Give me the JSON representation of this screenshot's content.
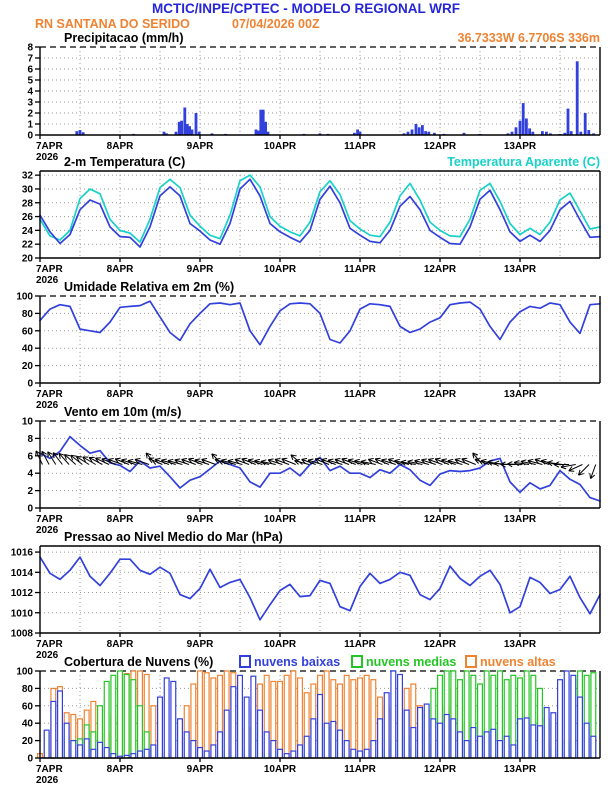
{
  "header": {
    "title": "MCTIC/INPE/CPTEC - MODELO REGIONAL WRF",
    "station": "RN SANTANA DO SERIDO",
    "run": "07/04/2026 00Z",
    "title_color": "#2626d8",
    "subtitle_color": "#ef8332"
  },
  "colors": {
    "line_blue": "#3240dc",
    "cyan": "#18d2c9",
    "green": "#25c525",
    "orange": "#ef8332",
    "grid": "#999999",
    "frame": "#000000"
  },
  "x_axis": {
    "day_labels": [
      "7APR",
      "8APR",
      "9APR",
      "10APR",
      "11APR",
      "12APR",
      "13APR"
    ],
    "year": "2026",
    "n_days": 7
  },
  "chart_data": [
    {
      "id": "precip",
      "type": "bar",
      "title": "Precipitacao (mm/h)",
      "right_label": "36.7333W 6.7706S 336m",
      "right_color": "#ef8332",
      "ylim": [
        0,
        8
      ],
      "yticks": [
        0,
        1,
        2,
        3,
        4,
        5,
        6,
        7,
        8
      ],
      "top_dashed": true,
      "bar_color": "#3240dc",
      "bars": [
        [
          0.46,
          0.35
        ],
        [
          0.5,
          0.45
        ],
        [
          0.54,
          0.25
        ],
        [
          1.17,
          0.1
        ],
        [
          1.55,
          0.3
        ],
        [
          1.58,
          0.15
        ],
        [
          1.7,
          0.3
        ],
        [
          1.74,
          1.2
        ],
        [
          1.77,
          1.3
        ],
        [
          1.81,
          2.5
        ],
        [
          1.84,
          1.0
        ],
        [
          1.87,
          0.8
        ],
        [
          1.9,
          0.5
        ],
        [
          1.95,
          2.0
        ],
        [
          1.99,
          0.3
        ],
        [
          2.15,
          0.15
        ],
        [
          2.32,
          0.1
        ],
        [
          2.7,
          0.5
        ],
        [
          2.73,
          0.4
        ],
        [
          2.76,
          2.3
        ],
        [
          2.79,
          2.3
        ],
        [
          2.82,
          1.2
        ],
        [
          2.85,
          0.3
        ],
        [
          3.3,
          0.1
        ],
        [
          3.5,
          0.15
        ],
        [
          3.6,
          0.1
        ],
        [
          3.93,
          0.2
        ],
        [
          3.97,
          0.5
        ],
        [
          4.0,
          0.3
        ],
        [
          4.55,
          0.15
        ],
        [
          4.6,
          0.3
        ],
        [
          4.65,
          0.5
        ],
        [
          4.7,
          1.0
        ],
        [
          4.74,
          0.7
        ],
        [
          4.78,
          0.9
        ],
        [
          4.82,
          0.35
        ],
        [
          4.86,
          0.3
        ],
        [
          4.93,
          0.2
        ],
        [
          5.05,
          0.1
        ],
        [
          5.3,
          0.2
        ],
        [
          5.5,
          0.1
        ],
        [
          5.85,
          0.15
        ],
        [
          5.9,
          0.3
        ],
        [
          5.95,
          0.7
        ],
        [
          6.0,
          1.3
        ],
        [
          6.04,
          2.9
        ],
        [
          6.08,
          1.5
        ],
        [
          6.12,
          0.6
        ],
        [
          6.16,
          0.3
        ],
        [
          6.28,
          0.35
        ],
        [
          6.33,
          0.3
        ],
        [
          6.38,
          0.15
        ],
        [
          6.5,
          0.1
        ],
        [
          6.56,
          0.2
        ],
        [
          6.6,
          2.4
        ],
        [
          6.64,
          0.35
        ],
        [
          6.715,
          6.7
        ],
        [
          6.76,
          0.3
        ],
        [
          6.815,
          2.0
        ],
        [
          6.86,
          0.45
        ],
        [
          6.92,
          0.15
        ]
      ]
    },
    {
      "id": "temp2m",
      "type": "line",
      "title": "2-m Temperatura (C)",
      "right_label": "Temperatura Aparente (C)",
      "right_color": "#18d2c9",
      "ylim": [
        20,
        32.6
      ],
      "yticks": [
        20,
        22,
        24,
        26,
        28,
        30,
        32
      ],
      "top_dashed": false,
      "series": [
        {
          "name": "2-m Temperatura (C)",
          "color": "#3240dc",
          "values": [
            26.2,
            23.8,
            22.1,
            23.4,
            27.0,
            28.4,
            27.8,
            24.5,
            23.1,
            23.0,
            21.6,
            24.5,
            29.0,
            30.3,
            29.0,
            25.0,
            23.9,
            22.6,
            22.0,
            25.0,
            30.0,
            31.4,
            29.0,
            25.0,
            23.8,
            23.0,
            22.3,
            24.0,
            28.5,
            30.4,
            28.0,
            24.3,
            23.3,
            22.4,
            22.2,
            24.0,
            27.5,
            28.9,
            27.0,
            24.0,
            23.0,
            22.1,
            22.0,
            24.5,
            28.5,
            29.8,
            27.0,
            23.8,
            22.4,
            23.3,
            22.4,
            24.0,
            27.0,
            28.2,
            25.5,
            23.0,
            23.1
          ]
        },
        {
          "name": "Temperatura Aparente (C)",
          "color": "#18d2c9",
          "values": [
            25.6,
            23.2,
            22.6,
            24.0,
            28.6,
            30.0,
            29.3,
            25.6,
            24.0,
            23.6,
            22.3,
            25.6,
            30.2,
            31.4,
            30.2,
            26.2,
            24.6,
            23.3,
            22.8,
            26.2,
            31.2,
            32.0,
            30.3,
            26.0,
            24.6,
            23.8,
            23.2,
            25.2,
            29.6,
            31.2,
            29.2,
            25.4,
            24.2,
            23.3,
            23.1,
            25.2,
            29.0,
            30.8,
            28.4,
            25.2,
            24.0,
            23.2,
            23.1,
            25.6,
            29.8,
            30.8,
            28.2,
            25.0,
            23.4,
            24.3,
            23.4,
            25.2,
            28.4,
            29.4,
            26.8,
            24.2,
            24.5
          ]
        }
      ]
    },
    {
      "id": "rh2m",
      "type": "line",
      "title": "Umidade Relativa em 2m (%)",
      "right_label": "",
      "ylim": [
        0,
        100
      ],
      "yticks": [
        0,
        20,
        40,
        60,
        80,
        100
      ],
      "top_dashed": true,
      "series": [
        {
          "name": "Umidade Relativa em 2m (%)",
          "color": "#3240dc",
          "values": [
            72,
            85,
            90,
            88,
            62,
            60,
            58,
            70,
            87,
            88,
            89,
            94,
            76,
            58,
            49,
            68,
            80,
            91,
            92,
            90,
            92,
            60,
            44,
            65,
            83,
            91,
            92,
            91,
            80,
            50,
            46,
            60,
            85,
            91,
            90,
            88,
            65,
            58,
            62,
            70,
            75,
            90,
            92,
            93,
            85,
            65,
            50,
            70,
            82,
            88,
            86,
            92,
            90,
            70,
            57,
            90,
            91
          ]
        }
      ]
    },
    {
      "id": "wind10m",
      "type": "line",
      "title": "Vento em 10m (m/s)",
      "right_label": "",
      "ylim": [
        0,
        10
      ],
      "yticks": [
        0,
        2,
        4,
        6,
        8,
        10
      ],
      "top_dashed": true,
      "series": [
        {
          "name": "Vento em 10m (m/s)",
          "color": "#3240dc",
          "values": [
            6.3,
            5.7,
            6.5,
            8.2,
            7.2,
            6.3,
            6.6,
            5.2,
            4.9,
            4.2,
            5.4,
            4.6,
            4.8,
            3.6,
            2.3,
            3.2,
            3.6,
            4.5,
            5.4,
            5.0,
            4.6,
            3.0,
            2.4,
            4.0,
            4.0,
            4.6,
            3.7,
            5.0,
            5.8,
            4.3,
            4.8,
            4.0,
            4.0,
            3.5,
            4.4,
            4.0,
            5.0,
            4.4,
            3.2,
            2.6,
            3.9,
            4.3,
            4.2,
            4.3,
            4.6,
            5.4,
            5.7,
            3.0,
            1.8,
            2.9,
            2.2,
            2.6,
            4.3,
            3.3,
            2.7,
            1.2,
            0.8
          ]
        }
      ],
      "arrows": {
        "anchor": 5,
        "color": "#000000",
        "angles_deg": [
          115,
          118,
          122,
          128,
          132,
          138,
          142,
          148,
          150,
          152,
          155,
          158,
          160,
          158,
          162,
          165,
          160,
          130,
          156,
          160,
          163,
          165,
          162,
          160,
          158,
          162,
          160,
          135,
          160,
          163,
          165,
          160,
          158,
          162,
          165,
          168,
          162,
          160,
          158,
          140,
          165,
          160,
          163,
          158,
          160,
          163,
          160,
          158,
          162,
          165,
          168,
          160,
          158,
          162,
          160,
          165,
          170,
          168,
          165,
          162,
          160,
          158,
          162,
          165,
          160,
          158,
          130,
          160,
          165,
          170,
          175,
          180,
          178,
          172,
          168,
          165,
          160,
          165,
          172,
          180,
          190,
          205,
          225,
          250
        ]
      }
    },
    {
      "id": "slp",
      "type": "line",
      "title": "Pressao ao Nivel Medio do Mar (hPa)",
      "right_label": "",
      "ylim": [
        1008,
        1016.6
      ],
      "yticks": [
        1008,
        1010,
        1012,
        1014,
        1016
      ],
      "top_dashed": false,
      "series": [
        {
          "name": "Pressao ao Nivel Medio do Mar (hPa)",
          "color": "#3240dc",
          "values": [
            1015.5,
            1013.9,
            1013.3,
            1014.2,
            1015.5,
            1013.6,
            1012.7,
            1013.9,
            1015.3,
            1015.3,
            1014.2,
            1013.8,
            1014.5,
            1013.9,
            1011.8,
            1011.4,
            1012.4,
            1014.3,
            1012.5,
            1013.0,
            1013.3,
            1011.5,
            1009.3,
            1010.8,
            1012.2,
            1012.8,
            1011.6,
            1011.7,
            1013.2,
            1012.9,
            1010.6,
            1010.2,
            1012.6,
            1013.9,
            1012.9,
            1013.3,
            1014.0,
            1013.7,
            1011.8,
            1011.3,
            1012.4,
            1014.6,
            1013.4,
            1012.7,
            1013.6,
            1014.2,
            1012.8,
            1010.0,
            1010.6,
            1013.5,
            1013.0,
            1011.9,
            1012.3,
            1013.6,
            1011.5,
            1009.9,
            1011.8
          ]
        }
      ]
    },
    {
      "id": "clouds",
      "type": "bar-multi",
      "title": "Cobertura de Nuvens (%)",
      "ylim": [
        0,
        100
      ],
      "yticks": [
        0,
        20,
        40,
        60,
        80,
        100
      ],
      "top_dashed": true,
      "step_hours": 2,
      "legend": [
        {
          "label": "nuvens baixas",
          "color": "#3240dc"
        },
        {
          "label": "nuvens medias",
          "color": "#25c525"
        },
        {
          "label": "nuvens altas",
          "color": "#ef8332"
        }
      ],
      "series": [
        {
          "name": "nuvens altas",
          "color": "#ef8332",
          "values": [
            5,
            30,
            80,
            82,
            52,
            50,
            45,
            55,
            65,
            42,
            28,
            48,
            90,
            97,
            100,
            100,
            96,
            60,
            20,
            5,
            10,
            40,
            60,
            85,
            100,
            98,
            92,
            95,
            100,
            98,
            70,
            35,
            55,
            85,
            95,
            88,
            88,
            95,
            100,
            92,
            75,
            85,
            95,
            100,
            90,
            85,
            95,
            90,
            92,
            95,
            90,
            70,
            60,
            55,
            65,
            80,
            85,
            60,
            30,
            15,
            30,
            60,
            80,
            70,
            40,
            20,
            10,
            5,
            2,
            0,
            0,
            0,
            0,
            0,
            0,
            0,
            20,
            40,
            35,
            10,
            5,
            0,
            0,
            0
          ]
        },
        {
          "name": "nuvens medias",
          "color": "#25c525",
          "values": [
            0,
            0,
            5,
            12,
            25,
            8,
            22,
            38,
            30,
            60,
            88,
            95,
            100,
            96,
            90,
            60,
            30,
            10,
            5,
            2,
            0,
            0,
            0,
            0,
            0,
            0,
            2,
            5,
            8,
            3,
            2,
            10,
            35,
            20,
            5,
            8,
            2,
            0,
            0,
            3,
            5,
            10,
            25,
            35,
            20,
            8,
            4,
            2,
            0,
            0,
            2,
            5,
            10,
            20,
            40,
            25,
            10,
            30,
            55,
            80,
            95,
            100,
            100,
            90,
            100,
            95,
            85,
            100,
            95,
            100,
            90,
            95,
            92,
            100,
            95,
            80,
            45,
            10,
            5,
            20,
            90,
            100,
            95,
            98
          ]
        },
        {
          "name": "nuvens baixas",
          "color": "#3240dc",
          "values": [
            0,
            32,
            65,
            77,
            40,
            20,
            15,
            22,
            10,
            18,
            12,
            5,
            2,
            3,
            5,
            8,
            10,
            15,
            70,
            92,
            88,
            45,
            30,
            20,
            12,
            8,
            15,
            30,
            55,
            82,
            95,
            70,
            94,
            55,
            30,
            20,
            10,
            5,
            8,
            15,
            25,
            45,
            73,
            40,
            42,
            32,
            20,
            10,
            8,
            10,
            20,
            45,
            75,
            100,
            96,
            55,
            35,
            58,
            62,
            45,
            40,
            50,
            45,
            30,
            20,
            35,
            25,
            30,
            33,
            20,
            25,
            15,
            45,
            46,
            38,
            37,
            58,
            52,
            90,
            100,
            95,
            70,
            40,
            25
          ]
        }
      ]
    }
  ]
}
